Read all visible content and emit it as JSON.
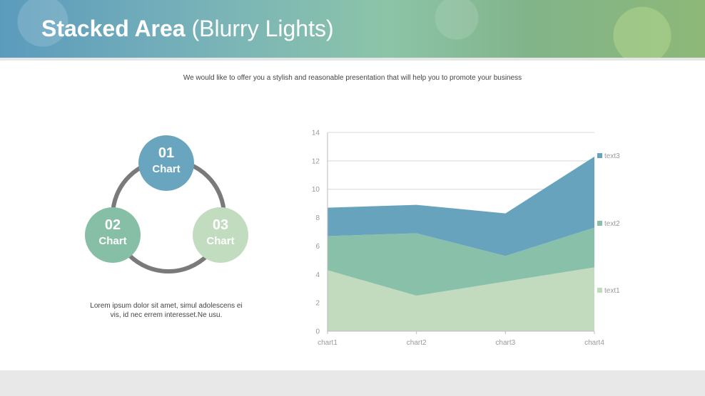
{
  "header": {
    "title_bold": "Stacked Area",
    "title_rest": "(Blurry Lights)"
  },
  "subtitle": "We would like to offer you a stylish and reasonable presentation that will help you to promote your business",
  "cycle": [
    {
      "number": "01",
      "label": "Chart",
      "color": "#6aa5bf"
    },
    {
      "number": "02",
      "label": "Chart",
      "color": "#86bfa5"
    },
    {
      "number": "03",
      "label": "Chart",
      "color": "#c2dcc0"
    }
  ],
  "description": "Lorem ipsum dolor sit amet, simul adolescens ei vis, id nec errem interesset.Ne usu.",
  "chart_data": {
    "type": "area",
    "stacked": true,
    "categories": [
      "chart1",
      "chart2",
      "chart3",
      "chart4"
    ],
    "series": [
      {
        "name": "text1",
        "values": [
          4.3,
          2.5,
          3.5,
          4.5
        ],
        "color": "#c2dbbf"
      },
      {
        "name": "text2",
        "values": [
          2.4,
          4.4,
          1.8,
          2.8
        ],
        "color": "#88c0aa"
      },
      {
        "name": "text3",
        "values": [
          2,
          2,
          3,
          5
        ],
        "color": "#68a3bd"
      }
    ],
    "ylim": [
      0,
      14
    ],
    "yticks": [
      0,
      2,
      4,
      6,
      8,
      10,
      12,
      14
    ],
    "grid": true,
    "legend": "right"
  }
}
